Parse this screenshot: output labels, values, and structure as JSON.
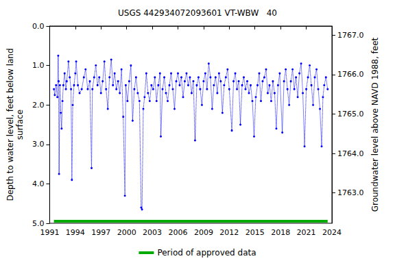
{
  "chart_data": {
    "type": "line",
    "title": "USGS 442934072093601 VT-WBW   40",
    "x_label": "",
    "y_label": "Depth to water level, feet below land\nsurface",
    "y2_label": "Groundwater level above NAVD 1988, feet",
    "xlim": [
      1991,
      2024
    ],
    "xticks": [
      1991,
      1994,
      1997,
      2000,
      2003,
      2006,
      2009,
      2012,
      2015,
      2018,
      2021,
      2024
    ],
    "ylim": [
      0,
      5
    ],
    "y_inverted": true,
    "yticks": [
      {
        "value": 0,
        "label": "0.0"
      },
      {
        "value": 1,
        "label": "1.0"
      },
      {
        "value": 2,
        "label": "2.0"
      },
      {
        "value": 3,
        "label": "3.0"
      },
      {
        "value": 4,
        "label": "4.0"
      },
      {
        "value": 5,
        "label": "5.0"
      }
    ],
    "y2lim": [
      1762.23,
      1767.23
    ],
    "y2ticks": [
      {
        "value": 1763,
        "label": "1763.0"
      },
      {
        "value": 1764,
        "label": "1764.0"
      },
      {
        "value": 1765,
        "label": "1765.0"
      },
      {
        "value": 1766,
        "label": "1766.0"
      },
      {
        "value": 1767,
        "label": "1767.0"
      }
    ],
    "grid": false,
    "legend": "bottom",
    "series": [
      {
        "color": "#0000ff",
        "marker": "circle",
        "line_style": "dotted",
        "x": [
          1991.5,
          1991.6,
          1991.75,
          1991.9,
          1992.0,
          1992.05,
          1992.1,
          1992.2,
          1992.3,
          1992.4,
          1992.5,
          1992.6,
          1992.75,
          1992.9,
          1993.0,
          1993.2,
          1993.35,
          1993.5,
          1993.6,
          1993.7,
          1993.85,
          1994.0,
          1994.1,
          1994.3,
          1994.5,
          1994.75,
          1995.0,
          1995.2,
          1995.45,
          1995.7,
          1995.9,
          1996.0,
          1996.2,
          1996.4,
          1996.6,
          1996.8,
          1997.0,
          1997.2,
          1997.4,
          1997.6,
          1997.8,
          1998.0,
          1998.2,
          1998.4,
          1998.6,
          1998.8,
          1999.0,
          1999.2,
          1999.4,
          1999.6,
          1999.8,
          1999.9,
          2000.1,
          2000.3,
          2000.5,
          2000.7,
          2000.9,
          2001.1,
          2001.3,
          2001.5,
          2001.7,
          2001.8,
          2001.95,
          2002.1,
          2002.3,
          2002.5,
          2002.7,
          2002.9,
          2003.1,
          2003.3,
          2003.5,
          2003.7,
          2003.9,
          2004.0,
          2004.2,
          2004.4,
          2004.6,
          2004.8,
          2005.0,
          2005.2,
          2005.4,
          2005.6,
          2005.8,
          2006.0,
          2006.2,
          2006.4,
          2006.6,
          2006.8,
          2007.0,
          2007.2,
          2007.4,
          2007.6,
          2007.8,
          2008.0,
          2008.2,
          2008.4,
          2008.6,
          2008.8,
          2009.0,
          2009.2,
          2009.4,
          2009.6,
          2009.8,
          2010.0,
          2010.2,
          2010.4,
          2010.6,
          2010.8,
          2011.0,
          2011.2,
          2011.4,
          2011.6,
          2011.8,
          2012.0,
          2012.3,
          2012.5,
          2012.7,
          2012.9,
          2013.1,
          2013.3,
          2013.5,
          2013.7,
          2013.9,
          2014.1,
          2014.3,
          2014.5,
          2014.7,
          2014.9,
          2015.1,
          2015.3,
          2015.5,
          2015.7,
          2015.9,
          2016.1,
          2016.3,
          2016.5,
          2016.7,
          2016.9,
          2017.1,
          2017.3,
          2017.5,
          2017.7,
          2017.9,
          2018.2,
          2018.4,
          2018.6,
          2018.8,
          2019.0,
          2019.2,
          2019.4,
          2019.6,
          2019.8,
          2020.0,
          2020.2,
          2020.4,
          2020.6,
          2020.8,
          2021.0,
          2021.2,
          2021.4,
          2021.6,
          2021.8,
          2022.0,
          2022.2,
          2022.4,
          2022.6,
          2022.8,
          2022.95,
          2023.1,
          2023.3,
          2023.5
        ],
        "values": [
          1.6,
          1.75,
          1.5,
          1.8,
          0.75,
          1.4,
          3.75,
          1.5,
          2.2,
          2.6,
          1.9,
          1.5,
          1.2,
          1.6,
          1.4,
          0.9,
          1.3,
          1.6,
          3.9,
          2.0,
          1.5,
          1.2,
          0.9,
          1.5,
          1.7,
          1.6,
          1.3,
          1.1,
          1.6,
          1.4,
          3.6,
          1.6,
          1.3,
          1.0,
          1.5,
          1.3,
          1.7,
          1.4,
          0.9,
          1.6,
          2.1,
          1.3,
          0.85,
          1.5,
          1.2,
          1.6,
          1.4,
          1.7,
          1.1,
          2.3,
          4.3,
          1.5,
          1.9,
          1.4,
          1.0,
          2.4,
          1.6,
          1.3,
          1.7,
          1.9,
          4.6,
          4.65,
          2.1,
          1.8,
          1.2,
          1.7,
          1.9,
          1.5,
          1.6,
          1.3,
          1.9,
          1.5,
          1.2,
          2.8,
          1.6,
          1.3,
          1.7,
          1.9,
          1.5,
          1.2,
          1.6,
          2.1,
          1.4,
          1.2,
          1.5,
          1.3,
          1.8,
          1.4,
          1.2,
          1.5,
          1.3,
          1.7,
          1.4,
          2.9,
          1.5,
          1.3,
          1.6,
          2.0,
          1.4,
          1.2,
          1.6,
          0.95,
          1.3,
          2.1,
          1.5,
          1.3,
          1.7,
          1.2,
          1.4,
          2.2,
          1.5,
          1.3,
          1.1,
          1.6,
          2.65,
          1.4,
          1.2,
          1.6,
          1.4,
          2.5,
          1.5,
          1.3,
          1.6,
          1.4,
          1.7,
          1.5,
          1.9,
          2.8,
          1.8,
          1.5,
          1.2,
          1.9,
          1.4,
          1.3,
          1.1,
          1.7,
          1.5,
          1.9,
          1.4,
          1.7,
          2.6,
          1.5,
          1.2,
          2.7,
          1.4,
          1.1,
          1.6,
          2.0,
          1.4,
          1.1,
          1.6,
          1.3,
          1.8,
          1.2,
          0.95,
          1.7,
          3.05,
          1.6,
          1.3,
          1.0,
          1.5,
          2.0,
          1.3,
          1.1,
          1.6,
          2.1,
          3.05,
          1.8,
          1.5,
          1.3,
          1.6
        ]
      },
      {
        "name": "Period of approved data",
        "color": "#00aa00",
        "marker": "none",
        "line_style": "solid",
        "x": [
          1991.5,
          2023.5
        ],
        "values": [
          4.95,
          4.95
        ]
      }
    ]
  }
}
